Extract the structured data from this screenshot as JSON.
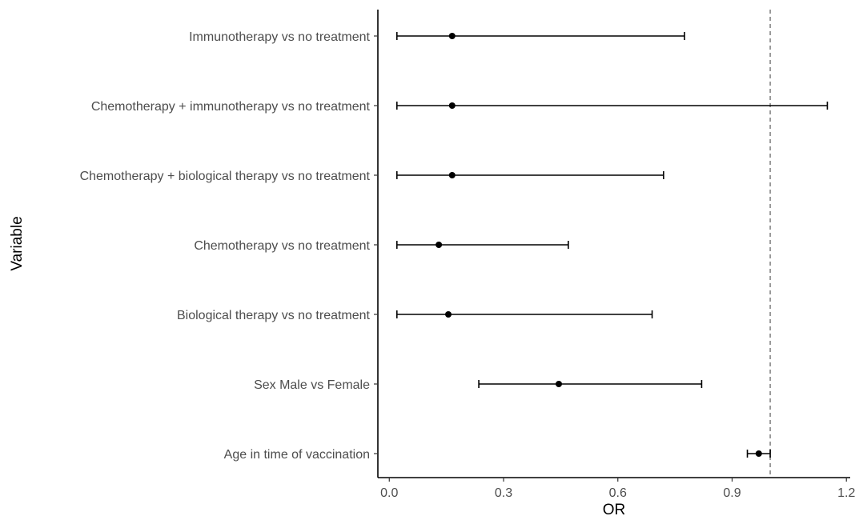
{
  "chart_data": {
    "type": "forest",
    "title": "",
    "xlabel": "OR",
    "ylabel": "Variable",
    "xlim": [
      -0.03,
      1.21
    ],
    "xticks": [
      0.0,
      0.3,
      0.6,
      0.9,
      1.2
    ],
    "xtick_labels": [
      "0.0",
      "0.3",
      "0.6",
      "0.9",
      "1.2"
    ],
    "reference_line": 1.0,
    "grid": false,
    "legend": "none",
    "colors": {
      "point": "#000000",
      "errorbar": "#000000",
      "reference_line": "#808080",
      "axis": "#000000"
    },
    "categories": [
      "Immunotherapy vs no treatment",
      "Chemotherapy + immunotherapy vs no treatment",
      "Chemotherapy + biological therapy vs no treatment",
      "Chemotherapy vs no treatment",
      "Biological therapy vs no treatment",
      "Sex Male vs Female",
      "Age in time of vaccination"
    ],
    "estimates": [
      0.165,
      0.165,
      0.165,
      0.13,
      0.155,
      0.445,
      0.97
    ],
    "lower": [
      0.02,
      0.02,
      0.02,
      0.02,
      0.02,
      0.235,
      0.94
    ],
    "upper": [
      0.775,
      1.15,
      0.72,
      0.47,
      0.69,
      0.82,
      1.0
    ]
  }
}
